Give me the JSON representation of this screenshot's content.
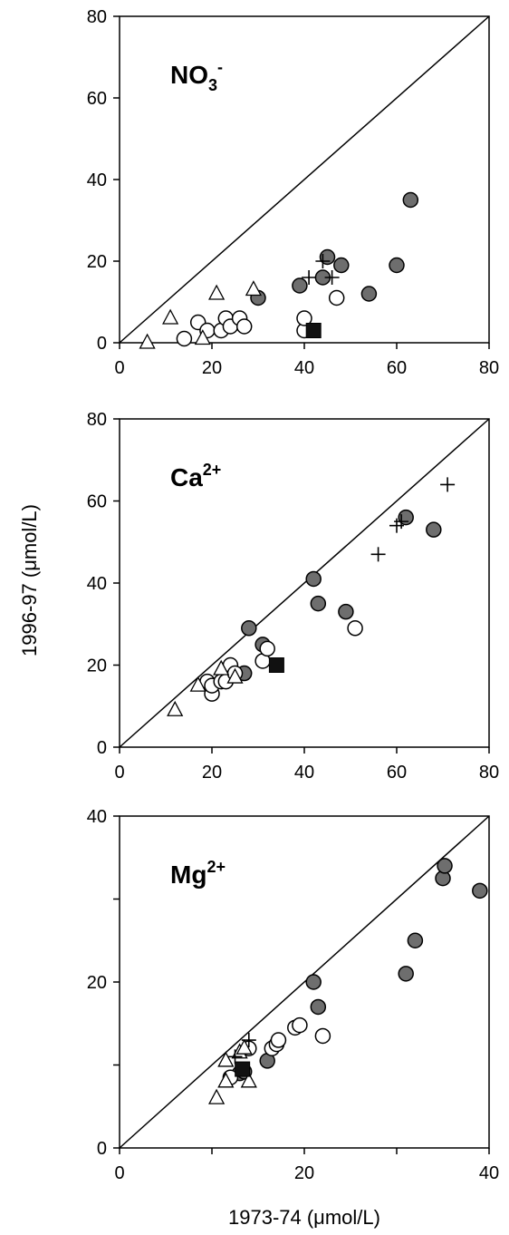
{
  "figure": {
    "ylabel": "1996-97 (μmol/L)",
    "xlabel": "1973-74 (μmol/L)"
  },
  "chart_data": [
    {
      "type": "scatter",
      "label_main": "NO",
      "label_sub": "3",
      "label_sup": "-",
      "xlim": [
        0,
        80
      ],
      "ylim": [
        0,
        80
      ],
      "x_ticks": [
        "0",
        "20",
        "40",
        "60",
        "80"
      ],
      "y_ticks": [
        "0",
        "20",
        "40",
        "60",
        "80"
      ],
      "reference_line": "1:1",
      "series": [
        {
          "marker": "filled-circle",
          "points": [
            [
              30,
              11
            ],
            [
              39,
              14
            ],
            [
              44,
              16
            ],
            [
              45,
              21
            ],
            [
              48,
              19
            ],
            [
              54,
              12
            ],
            [
              60,
              19
            ],
            [
              63,
              35
            ]
          ]
        },
        {
          "marker": "open-circle",
          "points": [
            [
              14,
              1
            ],
            [
              17,
              5
            ],
            [
              19,
              3
            ],
            [
              22,
              3
            ],
            [
              23,
              6
            ],
            [
              24,
              4
            ],
            [
              26,
              6
            ],
            [
              27,
              4
            ],
            [
              40,
              3
            ],
            [
              40,
              6
            ],
            [
              47,
              11
            ]
          ]
        },
        {
          "marker": "triangle",
          "points": [
            [
              6,
              0
            ],
            [
              11,
              6
            ],
            [
              18,
              1
            ],
            [
              21,
              12
            ],
            [
              29,
              13
            ]
          ]
        },
        {
          "marker": "plus",
          "points": [
            [
              41,
              16
            ],
            [
              44,
              20
            ],
            [
              46,
              16
            ]
          ]
        },
        {
          "marker": "filled-square",
          "points": [
            [
              42,
              3
            ]
          ]
        }
      ]
    },
    {
      "type": "scatter",
      "label_main": "Ca",
      "label_sub": "",
      "label_sup": "2+",
      "xlim": [
        0,
        80
      ],
      "ylim": [
        0,
        80
      ],
      "x_ticks": [
        "0",
        "20",
        "40",
        "60",
        "80"
      ],
      "y_ticks": [
        "0",
        "20",
        "40",
        "60",
        "80"
      ],
      "reference_line": "1:1",
      "series": [
        {
          "marker": "filled-circle",
          "points": [
            [
              28,
              29
            ],
            [
              31,
              25
            ],
            [
              42,
              41
            ],
            [
              43,
              35
            ],
            [
              49,
              33
            ],
            [
              62,
              56
            ],
            [
              68,
              53
            ],
            [
              27,
              18
            ]
          ]
        },
        {
          "marker": "open-circle",
          "points": [
            [
              19,
              16
            ],
            [
              20,
              13
            ],
            [
              20,
              15
            ],
            [
              22,
              16
            ],
            [
              23,
              16
            ],
            [
              24,
              20
            ],
            [
              25,
              18
            ],
            [
              31,
              21
            ],
            [
              32,
              24
            ],
            [
              51,
              29
            ]
          ]
        },
        {
          "marker": "triangle",
          "points": [
            [
              12,
              9
            ],
            [
              17,
              15
            ],
            [
              22,
              19
            ],
            [
              25,
              17
            ]
          ]
        },
        {
          "marker": "plus",
          "points": [
            [
              56,
              47
            ],
            [
              60,
              54
            ],
            [
              61,
              55
            ],
            [
              71,
              64
            ]
          ]
        },
        {
          "marker": "filled-square",
          "points": [
            [
              34,
              20
            ]
          ]
        }
      ]
    },
    {
      "type": "scatter",
      "label_main": "Mg",
      "label_sub": "",
      "label_sup": "2+",
      "xlim": [
        0,
        40
      ],
      "ylim": [
        0,
        40
      ],
      "x_ticks": [
        "0",
        "",
        "20",
        "",
        "40"
      ],
      "y_ticks": [
        "0",
        "",
        "20",
        "",
        "40"
      ],
      "reference_line": "1:1",
      "series": [
        {
          "marker": "filled-circle",
          "points": [
            [
              13,
              9
            ],
            [
              16,
              10.5
            ],
            [
              21,
              20
            ],
            [
              21.5,
              17
            ],
            [
              31,
              21
            ],
            [
              32,
              25
            ],
            [
              35,
              32.5
            ],
            [
              35.2,
              34
            ],
            [
              39,
              31
            ],
            [
              13.5,
              9.2
            ]
          ]
        },
        {
          "marker": "open-circle",
          "points": [
            [
              12,
              8.5
            ],
            [
              14,
              12
            ],
            [
              16.5,
              12
            ],
            [
              17,
              12.5
            ],
            [
              17.2,
              13
            ],
            [
              19,
              14.5
            ],
            [
              19.5,
              14.8
            ],
            [
              22,
              13.5
            ]
          ]
        },
        {
          "marker": "triangle",
          "points": [
            [
              10.5,
              6
            ],
            [
              11.5,
              8
            ],
            [
              11.5,
              10.5
            ],
            [
              13,
              11.5
            ],
            [
              14,
              8
            ],
            [
              13.5,
              12
            ]
          ]
        },
        {
          "marker": "plus",
          "points": [
            [
              12.5,
              11
            ],
            [
              14,
              13
            ]
          ]
        },
        {
          "marker": "filled-square",
          "points": [
            [
              13.3,
              9.5
            ]
          ]
        }
      ]
    }
  ]
}
